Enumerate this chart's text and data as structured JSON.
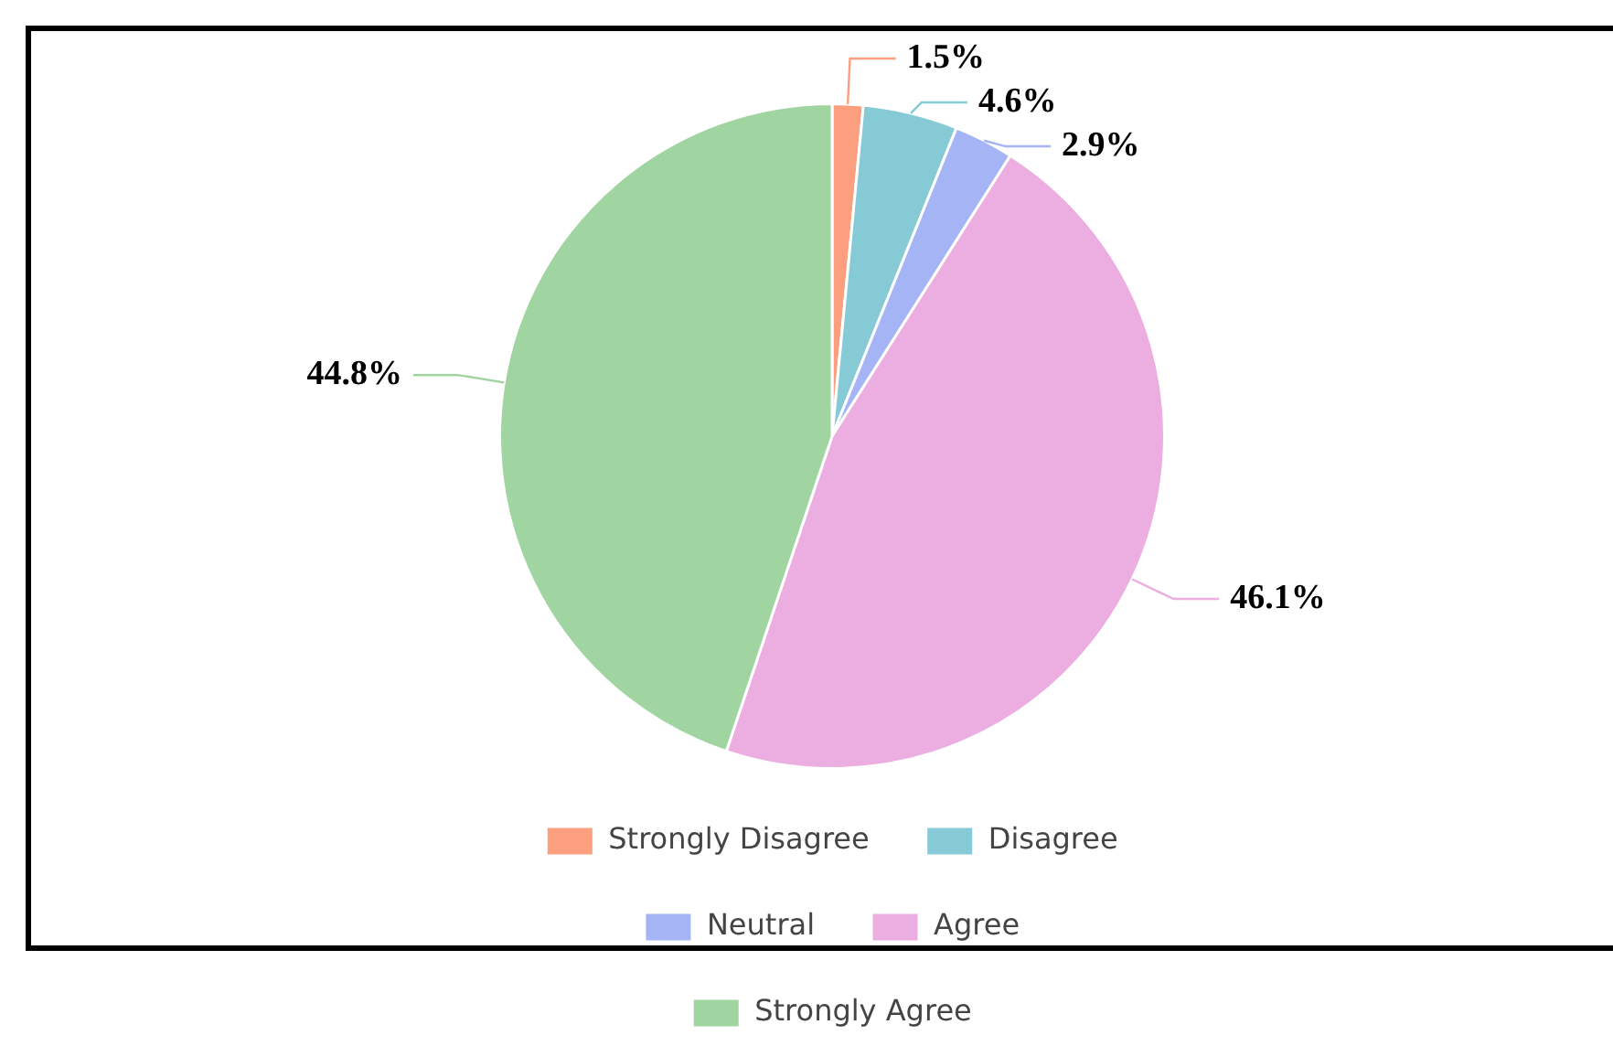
{
  "chart_data": {
    "type": "pie",
    "categories": [
      "Strongly Disagree",
      "Disagree",
      "Neutral",
      "Agree",
      "Strongly Agree"
    ],
    "values": [
      1.5,
      4.6,
      2.9,
      46.1,
      44.8
    ],
    "colors": [
      "#fc9f7e",
      "#86cad6",
      "#a4b4f4",
      "#ecaee0",
      "#a0d4a0"
    ],
    "value_labels": [
      "1.5%",
      "4.6%",
      "2.9%",
      "46.1%",
      "44.8%"
    ],
    "legend": "bottom"
  }
}
